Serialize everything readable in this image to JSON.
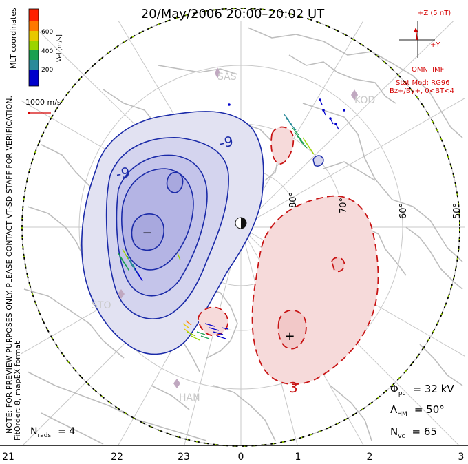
{
  "title": "20/May/2006 20:00–20:02 UT",
  "colorbar": {
    "label": "Vel [m/s]",
    "coord_label": "MLT coordinates",
    "ticks": [
      "600",
      "400",
      "200"
    ],
    "colors": [
      "#0000cc",
      "#2a8a9a",
      "#1aa050",
      "#9ad400",
      "#e8c800",
      "#ff7800",
      "#ff2000"
    ]
  },
  "vector_scale": "1000 m/s",
  "imf": {
    "z_label": "+Z (5 nT)",
    "y_label": "+Y",
    "source": "OMNI IMF",
    "model": "Stat Mod: RG96",
    "bins": "Bz+/By+, 0<BT<4"
  },
  "side_notes": {
    "preview": "NOTE: FOR PREVIEW PURPOSES ONLY. PLEASE CONTACT VT-SD STAFF FOR VERIFICATION.",
    "fit": "FitOrder: 8,  mapEX format"
  },
  "lat_labels": [
    "80°",
    "70°",
    "60°",
    "50°"
  ],
  "mlt_labels": [
    "21",
    "22",
    "23",
    "0",
    "1",
    "2",
    "3"
  ],
  "stations": [
    "SAS",
    "KOD",
    "STO",
    "HAN"
  ],
  "contour_labels": [
    "-9",
    "-9",
    "3"
  ],
  "markers": {
    "min": "−",
    "max": "+"
  },
  "stats": {
    "nrads_label": "N",
    "nrads_sub": "rads",
    "nrads_value": "= 4",
    "phi_label": "Φ",
    "phi_sub": "pc",
    "phi_value": "= 32 kV",
    "lambda_label": "Λ",
    "lambda_sub": "HM",
    "lambda_value": "= 50°",
    "nvc_label": "N",
    "nvc_sub": "vc",
    "nvc_value": "= 65"
  }
}
